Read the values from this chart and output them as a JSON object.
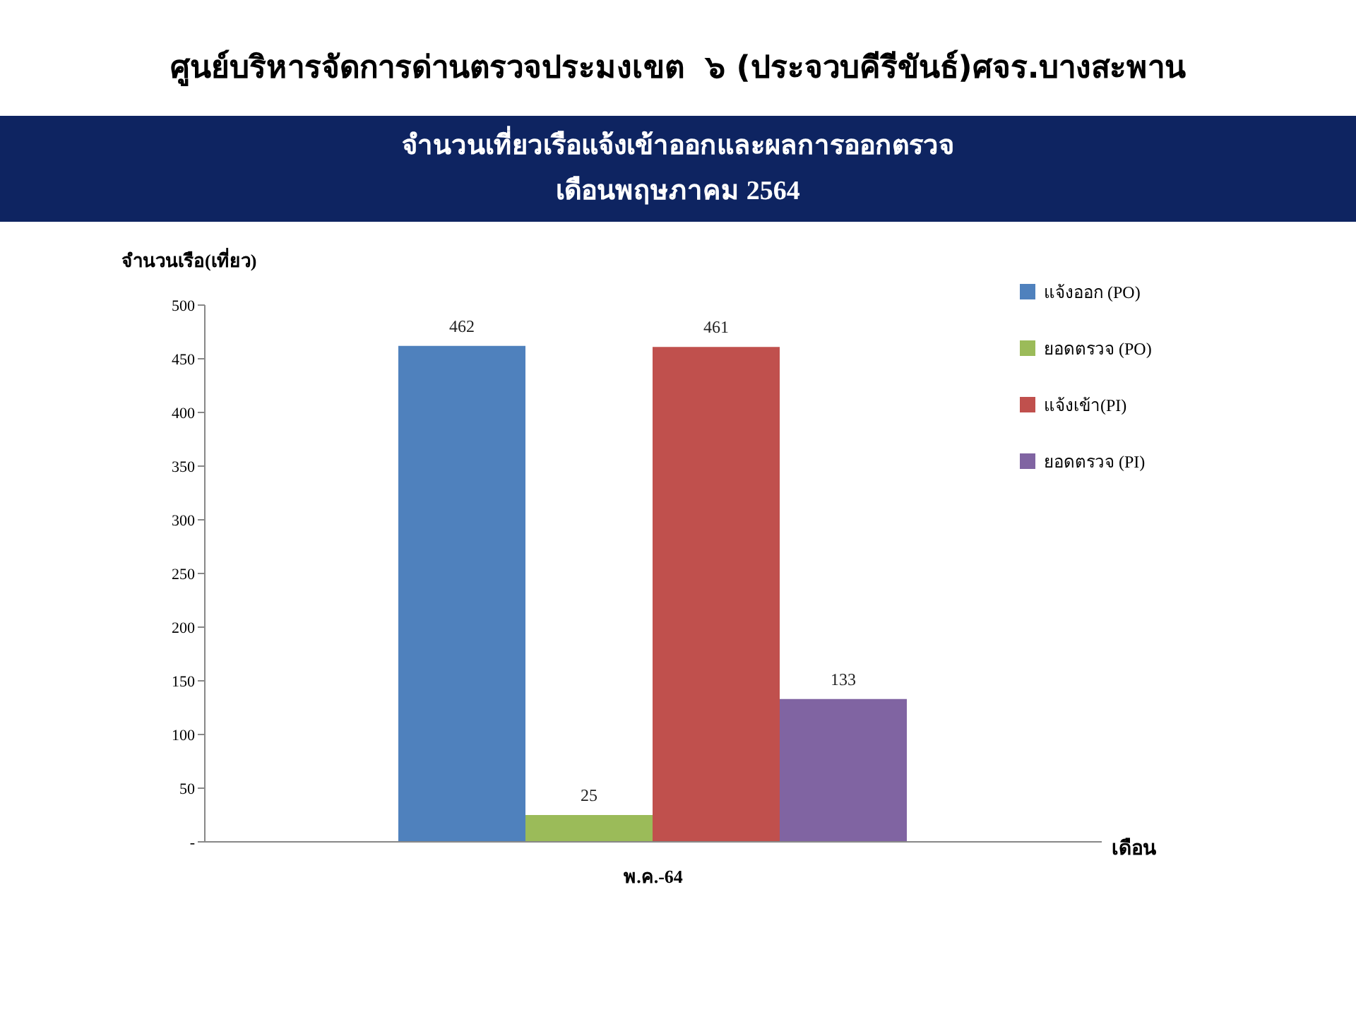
{
  "chart_data": {
    "type": "bar",
    "title": "ศูนย์บริหารจัดการด่านตรวจประมงเขต  ๖ (ประจวบคีรีขันธ์)ศจร.บางสะพาน",
    "subtitle": "จำนวนเที่ยวเรือแจ้งเข้าออกและผลการออกตรวจ\nเดือนพฤษภาคม 2564",
    "xlabel": "เดือน",
    "ylabel": "จำนวนเรือ(เที่ยว)",
    "categories": [
      "พ.ค.-64"
    ],
    "series": [
      {
        "name": "แจ้งออก (PO)",
        "color": "#4f81bd",
        "values": [
          462
        ]
      },
      {
        "name": "ยอดตรวจ (PO)",
        "color": "#9bbb59",
        "values": [
          25
        ]
      },
      {
        "name": "แจ้งเข้า(PI)",
        "color": "#c0504d",
        "values": [
          461
        ]
      },
      {
        "name": "ยอดตรวจ (PI)",
        "color": "#8064a2",
        "values": [
          133
        ]
      }
    ],
    "ylim": [
      0,
      500
    ],
    "yticks": [
      {
        "value": 0,
        "label": "-"
      },
      50,
      100,
      150,
      200,
      250,
      300,
      350,
      400,
      450,
      500
    ],
    "data_labels": true,
    "grid": false,
    "legend": "top right"
  }
}
